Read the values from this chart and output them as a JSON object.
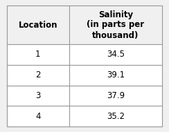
{
  "col1_header": "Location",
  "col2_header": "Salinity\n(in parts per\nthousand)",
  "rows": [
    [
      "1",
      "34.5"
    ],
    [
      "2",
      "39.1"
    ],
    [
      "3",
      "37.9"
    ],
    [
      "4",
      "35.2"
    ]
  ],
  "bg_color": "#f0f0f0",
  "header_bg": "#f0f0f0",
  "cell_bg": "#ffffff",
  "border_color": "#999999",
  "text_color": "#000000",
  "header_fontsize": 8.5,
  "cell_fontsize": 8.5,
  "fig_width": 2.44,
  "fig_height": 1.91,
  "dpi": 100
}
